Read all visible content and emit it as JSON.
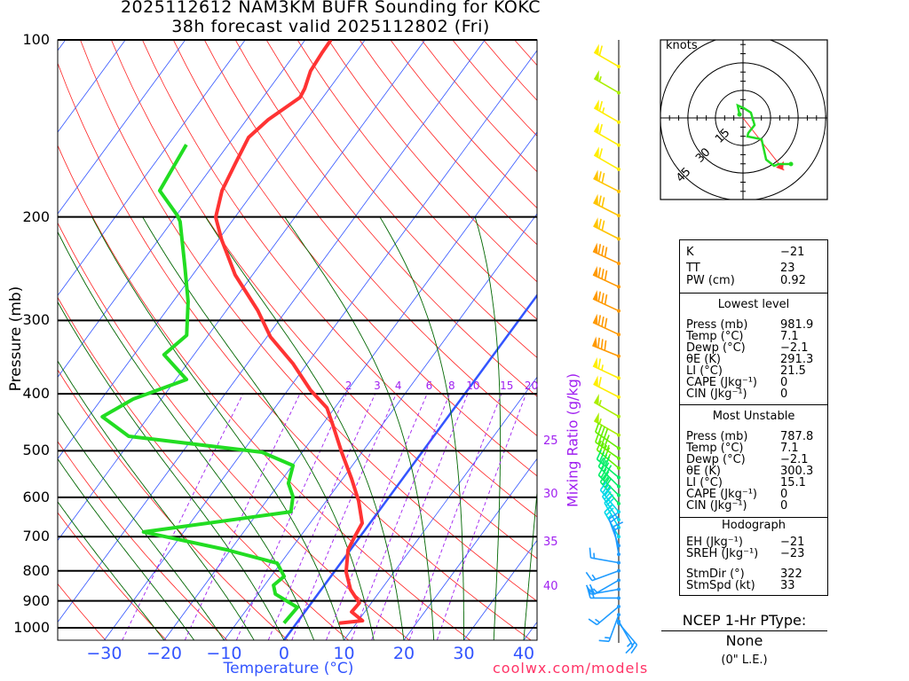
{
  "header": {
    "title_line1": "2025112612 NAM3KM BUFR Sounding for KOKC",
    "title_line2": "38h forecast valid 2025112802 (Fri)"
  },
  "chart_data": {
    "type": "skewt",
    "xlabel": "Temperature (°C)",
    "ylabel": "Pressure (mb)",
    "ylabel_right": "Mixing Ratio (g/kg)",
    "pressure_ticks": [
      "100",
      "200",
      "300",
      "400",
      "500",
      "600",
      "700",
      "800",
      "900",
      "1000"
    ],
    "temp_ticks": [
      "−30",
      "−20",
      "−10",
      "0",
      "10",
      "20",
      "30",
      "40"
    ],
    "ylim": [
      1050,
      100
    ],
    "xlim_at_bottom": [
      -38,
      42
    ],
    "mixing_ratio_labels": [
      "2",
      "3",
      "4",
      "6",
      "8",
      "10",
      "15",
      "20"
    ],
    "mixing_ratio_values": [
      2,
      3,
      4,
      6,
      8,
      10,
      15,
      20
    ],
    "moist_adiabat_labels": [
      "25",
      "30",
      "35",
      "40"
    ],
    "temperature": [
      {
        "p": 981.9,
        "t": 7.1
      },
      {
        "p": 972.6,
        "t": 10.7
      },
      {
        "p": 939.6,
        "t": 7.8
      },
      {
        "p": 907.4,
        "t": 8.0
      },
      {
        "p": 861,
        "t": 4.9
      },
      {
        "p": 803.5,
        "t": 2.0
      },
      {
        "p": 736.6,
        "t": -0.4
      },
      {
        "p": 699,
        "t": -0.9
      },
      {
        "p": 663.7,
        "t": -1.3
      },
      {
        "p": 608.6,
        "t": -4.6
      },
      {
        "p": 557.9,
        "t": -8.5
      },
      {
        "p": 502.8,
        "t": -13.4
      },
      {
        "p": 453,
        "t": -18.1
      },
      {
        "p": 422.6,
        "t": -21.3
      },
      {
        "p": 394.3,
        "t": -26.2
      },
      {
        "p": 355.2,
        "t": -32.4
      },
      {
        "p": 320.1,
        "t": -39.4
      },
      {
        "p": 288.4,
        "t": -44.8
      },
      {
        "p": 251,
        "t": -52.9
      },
      {
        "p": 218.5,
        "t": -59.5
      },
      {
        "p": 200.3,
        "t": -63.2
      },
      {
        "p": 180.5,
        "t": -65.4
      },
      {
        "p": 162.6,
        "t": -66.5
      },
      {
        "p": 146.5,
        "t": -67.5
      },
      {
        "p": 136.7,
        "t": -66.4
      },
      {
        "p": 125.3,
        "t": -63.8
      },
      {
        "p": 121.1,
        "t": -64.1
      },
      {
        "p": 112.9,
        "t": -65.3
      },
      {
        "p": 105.3,
        "t": -65.6
      },
      {
        "p": 100,
        "t": -65.7
      }
    ],
    "dewpoint": [
      {
        "p": 981.9,
        "t": -2.1
      },
      {
        "p": 923.3,
        "t": -1.8
      },
      {
        "p": 876.2,
        "t": -7.1
      },
      {
        "p": 846.4,
        "t": -8.5
      },
      {
        "p": 817.7,
        "t": -7.8
      },
      {
        "p": 776.2,
        "t": -10.6
      },
      {
        "p": 736.6,
        "t": -20.7
      },
      {
        "p": 687.1,
        "t": -36.7
      },
      {
        "p": 634.7,
        "t": -14.6
      },
      {
        "p": 598.2,
        "t": -16.1
      },
      {
        "p": 567.7,
        "t": -18.5
      },
      {
        "p": 529.7,
        "t": -19.9
      },
      {
        "p": 502.8,
        "t": -26.7
      },
      {
        "p": 472.3,
        "t": -50.9
      },
      {
        "p": 437.5,
        "t": -57.7
      },
      {
        "p": 408.2,
        "t": -54.7
      },
      {
        "p": 378.2,
        "t": -48.2
      },
      {
        "p": 343.1,
        "t": -55.0
      },
      {
        "p": 318,
        "t": -53.6
      },
      {
        "p": 278.6,
        "t": -57.5
      },
      {
        "p": 242.4,
        "t": -62.4
      },
      {
        "p": 203.8,
        "t": -68.6
      },
      {
        "p": 199,
        "t": -69.8
      },
      {
        "p": 180.5,
        "t": -75.8
      },
      {
        "p": 150.7,
        "t": -77.0
      }
    ],
    "winds": [
      {
        "p": 111,
        "dir": 300,
        "spd": 60
      },
      {
        "p": 123,
        "dir": 300,
        "spd": 55
      },
      {
        "p": 138,
        "dir": 300,
        "spd": 65
      },
      {
        "p": 151,
        "dir": 300,
        "spd": 60
      },
      {
        "p": 166,
        "dir": 300,
        "spd": 60
      },
      {
        "p": 181,
        "dir": 297,
        "spd": 70
      },
      {
        "p": 199,
        "dir": 297,
        "spd": 70
      },
      {
        "p": 218,
        "dir": 297,
        "spd": 70
      },
      {
        "p": 240,
        "dir": 295,
        "spd": 80
      },
      {
        "p": 263,
        "dir": 295,
        "spd": 80
      },
      {
        "p": 289,
        "dir": 295,
        "spd": 80
      },
      {
        "p": 317,
        "dir": 295,
        "spd": 80
      },
      {
        "p": 345,
        "dir": 292,
        "spd": 80
      },
      {
        "p": 376,
        "dir": 295,
        "spd": 65
      },
      {
        "p": 405,
        "dir": 297,
        "spd": 60
      },
      {
        "p": 437,
        "dir": 300,
        "spd": 55
      },
      {
        "p": 470,
        "dir": 300,
        "spd": 55
      },
      {
        "p": 495,
        "dir": 305,
        "spd": 45
      },
      {
        "p": 515,
        "dir": 305,
        "spd": 45
      },
      {
        "p": 535,
        "dir": 310,
        "spd": 45
      },
      {
        "p": 555,
        "dir": 310,
        "spd": 40
      },
      {
        "p": 575,
        "dir": 315,
        "spd": 40
      },
      {
        "p": 595,
        "dir": 315,
        "spd": 35
      },
      {
        "p": 615,
        "dir": 320,
        "spd": 35
      },
      {
        "p": 635,
        "dir": 320,
        "spd": 30
      },
      {
        "p": 655,
        "dir": 325,
        "spd": 30
      },
      {
        "p": 675,
        "dir": 330,
        "spd": 25
      },
      {
        "p": 700,
        "dir": 330,
        "spd": 25
      },
      {
        "p": 725,
        "dir": 340,
        "spd": 20
      },
      {
        "p": 750,
        "dir": 350,
        "spd": 15
      },
      {
        "p": 775,
        "dir": 280,
        "spd": 15
      },
      {
        "p": 800,
        "dir": 250,
        "spd": 15
      },
      {
        "p": 830,
        "dir": 240,
        "spd": 15
      },
      {
        "p": 860,
        "dir": 260,
        "spd": 20
      },
      {
        "p": 890,
        "dir": 270,
        "spd": 20
      },
      {
        "p": 920,
        "dir": 230,
        "spd": 15
      },
      {
        "p": 950,
        "dir": 200,
        "spd": 15
      },
      {
        "p": 975,
        "dir": 150,
        "spd": 15
      },
      {
        "p": 982,
        "dir": 140,
        "spd": 15
      }
    ],
    "hodograph": {
      "unit_label": "knots",
      "ring_labels": [
        "15",
        "30",
        "45"
      ],
      "ring_values": [
        15,
        30,
        45
      ],
      "u": [
        -1.9,
        -2.9,
        0.5,
        4.3,
        6.3,
        2.9,
        2.4,
        10.1,
        12.6,
        16.9,
        19.3,
        26.1
      ],
      "v": [
        1.9,
        6.8,
        5.3,
        2.9,
        -3.9,
        -8.2,
        -10.1,
        -11.6,
        -22.7,
        -26.1,
        -25.1,
        -25.1
      ],
      "storm_motion": {
        "dir": 322,
        "spd": 33
      }
    }
  },
  "stats": {
    "k": {
      "label": "K",
      "value": "−21"
    },
    "tt": {
      "label": "TT",
      "value": "23"
    },
    "pw": {
      "label": "PW (cm)",
      "value": "0.92"
    },
    "lowest_title": "Lowest level",
    "lowest": [
      {
        "label": "Press (mb)",
        "value": "981.9"
      },
      {
        "label": "Temp (°C)",
        "value": "7.1"
      },
      {
        "label": "Dewp (°C)",
        "value": "−2.1"
      },
      {
        "label": "θE (K)",
        "value": "291.3"
      },
      {
        "label": "LI (°C)",
        "value": "21.5"
      },
      {
        "label": "CAPE (Jkg⁻¹)",
        "value": "0"
      },
      {
        "label": "CIN (Jkg⁻¹)",
        "value": "0"
      }
    ],
    "mu_title": "Most Unstable",
    "mu": [
      {
        "label": "Press (mb)",
        "value": "787.8"
      },
      {
        "label": "Temp (°C)",
        "value": "7.1"
      },
      {
        "label": "Dewp (°C)",
        "value": "−2.1"
      },
      {
        "label": "θE (K)",
        "value": "300.3"
      },
      {
        "label": "LI (°C)",
        "value": "15.1"
      },
      {
        "label": "CAPE (Jkg⁻¹)",
        "value": "0"
      },
      {
        "label": "CIN (Jkg⁻¹)",
        "value": "0"
      }
    ],
    "hodo_title": "Hodograph",
    "hodo": [
      {
        "label": "EH (Jkg⁻¹)",
        "value": "−21"
      },
      {
        "label": "SREH (Jkg⁻¹)",
        "value": "−23"
      },
      {
        "label": "StmDir (°)",
        "value": "322"
      },
      {
        "label": "StmSpd (kt)",
        "value": "33"
      }
    ]
  },
  "ptype": {
    "title": "NCEP 1-Hr PType:",
    "value": "None",
    "amount": "(0\" L.E.)"
  },
  "footer": {
    "credit": "coolwx.com/models"
  },
  "colors": {
    "temperature": "#ff3333",
    "dewpoint": "#22dd22",
    "isotherm": "#3355ff",
    "dry_adiabat": "#ff2222",
    "moist_adiabat": "#006600",
    "mixing_ratio": "#a020f0"
  }
}
